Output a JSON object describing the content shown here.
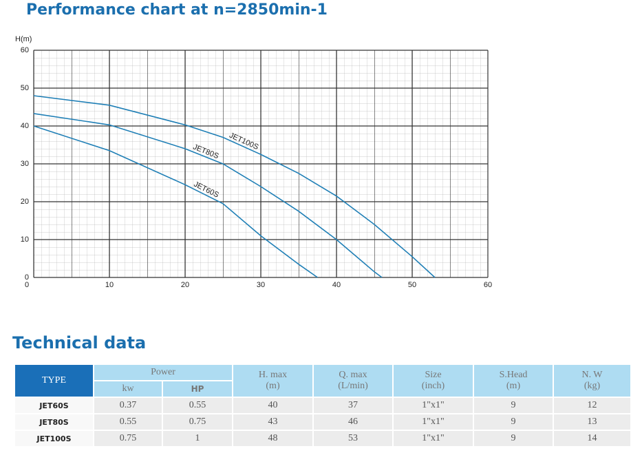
{
  "chart_data": {
    "type": "line",
    "title": "Performance chart at n=2850min-1",
    "y_label": "H(m)",
    "xlim": [
      0,
      60
    ],
    "xticks": [
      0,
      10,
      20,
      30,
      40,
      50,
      60
    ],
    "ylim": [
      0,
      60
    ],
    "yticks": [
      0,
      10,
      20,
      30,
      40,
      50,
      60
    ],
    "grid": true,
    "series": [
      {
        "name": "JET100S",
        "color": "#1f7fb6",
        "x": [
          0,
          10,
          20,
          25,
          30,
          35,
          40,
          45,
          50,
          53
        ],
        "values": [
          48,
          45.5,
          40.3,
          37,
          32.5,
          27.5,
          21.5,
          14,
          5.5,
          0
        ]
      },
      {
        "name": "JET80S",
        "color": "#1f7fb6",
        "x": [
          0,
          10,
          20,
          25,
          30,
          35,
          40,
          45,
          46
        ],
        "values": [
          43.3,
          40.3,
          34,
          30,
          24,
          17.5,
          10,
          1.5,
          0
        ]
      },
      {
        "name": "JET60S",
        "color": "#1f7fb6",
        "x": [
          0,
          10,
          20,
          25,
          30,
          35,
          37.5
        ],
        "values": [
          40,
          33.5,
          24.5,
          19.5,
          11,
          3.5,
          0
        ]
      }
    ]
  },
  "table": {
    "title": "Technical data",
    "header": {
      "type": "TYPE",
      "power": "Power",
      "kw": "kw",
      "hp": "HP",
      "hmax": [
        "H. max",
        "(m)"
      ],
      "qmax": [
        "Q. max",
        "(L/min)"
      ],
      "size": [
        "Size",
        "(inch)"
      ],
      "shead": [
        "S.Head",
        "(m)"
      ],
      "nw": [
        "N. W",
        "(kg)"
      ]
    },
    "rows": [
      [
        "JET60S",
        0.37,
        0.55,
        40,
        37,
        "1\"x1\"",
        9,
        12
      ],
      [
        "JET80S",
        0.55,
        0.75,
        43,
        46,
        "1\"x1\"",
        9,
        13
      ],
      [
        "JET100S",
        0.75,
        1,
        48,
        53,
        "1\"x1\"",
        9,
        14
      ]
    ]
  }
}
